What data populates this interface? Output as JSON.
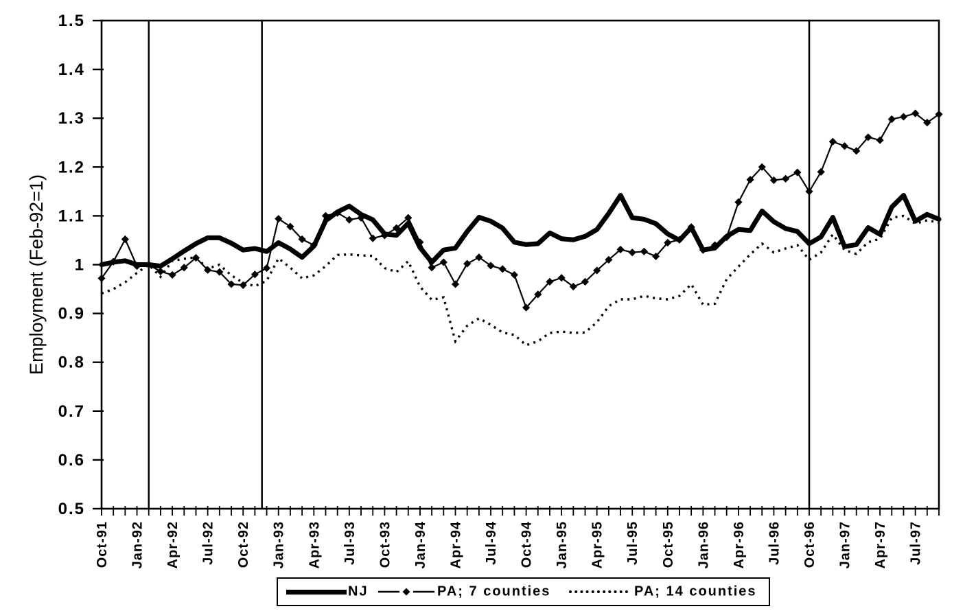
{
  "figure": {
    "background": "#ffffff",
    "ink": "#000000"
  },
  "chart_data": {
    "type": "line",
    "title": "",
    "ylabel": "Employment (Feb-92=1)",
    "ylim": [
      0.5,
      1.5
    ],
    "ytick_labels": [
      "1.5",
      "1.4",
      "1.3",
      "1.2",
      "1.1",
      "1",
      "0.9",
      "0.8",
      "0.7",
      "0.6",
      "0.5"
    ],
    "x_start": "Oct-91",
    "x_end": "Sep-97",
    "n_points": 72,
    "xtick_label_every": 3,
    "xtick_labels": [
      "Oct-91",
      "Jan-92",
      "Apr-92",
      "Jul-92",
      "Oct-92",
      "Jan-93",
      "Apr-93",
      "Jul-93",
      "Oct-93",
      "Jan-94",
      "Apr-94",
      "Jul-94",
      "Oct-94",
      "Jan-95",
      "Apr-95",
      "Jul-95",
      "Oct-95",
      "Jan-96",
      "Apr-96",
      "Jul-96",
      "Oct-96",
      "Jan-97",
      "Apr-97",
      "Jul-97"
    ],
    "event_line_month_indices": [
      4,
      13.6,
      60
    ],
    "grid": false,
    "legend_position": "bottom-center",
    "series": [
      {
        "name": "NJ",
        "style": "thick-solid",
        "values": [
          1.0,
          1.005,
          1.008,
          1.0,
          1.0,
          0.997,
          1.012,
          1.028,
          1.043,
          1.055,
          1.055,
          1.044,
          1.03,
          1.033,
          1.027,
          1.045,
          1.032,
          1.015,
          1.038,
          1.09,
          1.108,
          1.12,
          1.103,
          1.092,
          1.063,
          1.06,
          1.085,
          1.035,
          1.005,
          1.03,
          1.034,
          1.068,
          1.097,
          1.089,
          1.075,
          1.046,
          1.041,
          1.043,
          1.065,
          1.053,
          1.051,
          1.058,
          1.072,
          1.105,
          1.142,
          1.096,
          1.093,
          1.084,
          1.063,
          1.05,
          1.076,
          1.03,
          1.034,
          1.058,
          1.072,
          1.07,
          1.11,
          1.088,
          1.074,
          1.068,
          1.043,
          1.057,
          1.097,
          1.037,
          1.041,
          1.076,
          1.062,
          1.118,
          1.142,
          1.089,
          1.103,
          1.093
        ]
      },
      {
        "name": "PA; 7 counties",
        "style": "thin-solid-diamond-markers",
        "values": [
          0.972,
          1.006,
          1.052,
          0.997,
          1.0,
          0.986,
          0.979,
          0.994,
          1.014,
          0.989,
          0.985,
          0.96,
          0.958,
          0.98,
          0.993,
          1.094,
          1.078,
          1.052,
          1.04,
          1.1,
          1.106,
          1.092,
          1.096,
          1.054,
          1.06,
          1.075,
          1.096,
          1.046,
          0.994,
          1.005,
          0.96,
          1.002,
          1.015,
          0.998,
          0.991,
          0.979,
          0.912,
          0.939,
          0.965,
          0.973,
          0.955,
          0.965,
          0.988,
          1.01,
          1.031,
          1.025,
          1.027,
          1.017,
          1.045,
          1.051,
          1.077,
          1.03,
          1.04,
          1.056,
          1.128,
          1.174,
          1.2,
          1.173,
          1.176,
          1.189,
          1.15,
          1.19,
          1.252,
          1.243,
          1.233,
          1.261,
          1.255,
          1.298,
          1.303,
          1.31,
          1.291,
          1.308
        ]
      },
      {
        "name": "PA; 14 counties",
        "style": "dotted",
        "values": [
          0.941,
          0.95,
          0.964,
          0.983,
          1.0,
          0.975,
          1.008,
          1.012,
          1.015,
          0.992,
          1.0,
          0.978,
          0.963,
          0.956,
          0.967,
          1.013,
          0.994,
          0.972,
          0.978,
          0.997,
          1.02,
          1.021,
          1.019,
          1.018,
          0.993,
          0.985,
          1.007,
          0.955,
          0.928,
          0.933,
          0.843,
          0.875,
          0.89,
          0.877,
          0.861,
          0.856,
          0.835,
          0.843,
          0.86,
          0.863,
          0.86,
          0.861,
          0.882,
          0.915,
          0.929,
          0.929,
          0.936,
          0.931,
          0.929,
          0.936,
          0.96,
          0.918,
          0.92,
          0.97,
          0.996,
          1.021,
          1.043,
          1.025,
          1.033,
          1.04,
          1.01,
          1.025,
          1.062,
          1.03,
          1.022,
          1.046,
          1.053,
          1.096,
          1.1,
          1.084,
          1.091,
          1.086
        ]
      }
    ]
  }
}
